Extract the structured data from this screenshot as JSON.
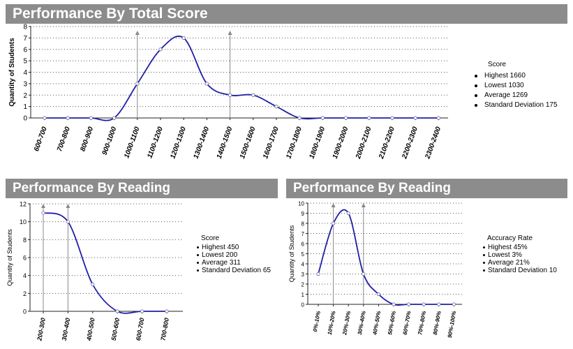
{
  "chart_data": [
    {
      "type": "line",
      "title": "Performance By Total Score",
      "ylabel": "Quantity of Students",
      "xlabel": "",
      "ylim": [
        0,
        8
      ],
      "yticks": [
        0,
        1,
        2,
        3,
        4,
        5,
        6,
        7,
        8
      ],
      "categories": [
        "600-700",
        "700-800",
        "800-900",
        "900-1000",
        "1000-1100",
        "1100-1200",
        "1200-1300",
        "1300-1400",
        "1400-1500",
        "1500-1600",
        "1600-1700",
        "1700-1800",
        "1800-1900",
        "1900-2000",
        "2000-2100",
        "2100-2200",
        "2200-2300",
        "2300-2400"
      ],
      "values": [
        0,
        0,
        0,
        0,
        3,
        6,
        7,
        3,
        2,
        2,
        1,
        0,
        0,
        0,
        0,
        0,
        0,
        0
      ],
      "markers": [
        4,
        8
      ],
      "legend": {
        "title": "Score",
        "items": [
          "Highest 1660",
          "Lowest 1030",
          "Average 1269",
          "Standard Deviation 175"
        ],
        "position": "right"
      },
      "grid": "horizontal-dotted",
      "color": "#1f1fa6"
    },
    {
      "type": "line",
      "title": "Performance By Reading",
      "ylabel": "Quantity of Students",
      "xlabel": "",
      "ylim": [
        0,
        12
      ],
      "yticks": [
        0,
        2,
        4,
        6,
        8,
        10,
        12
      ],
      "categories": [
        "200-300",
        "300-400",
        "400-500",
        "500-600",
        "600-700",
        "700-800"
      ],
      "values": [
        11,
        10,
        3,
        0,
        0,
        0
      ],
      "markers": [
        0,
        1
      ],
      "legend": {
        "title": "Score",
        "items": [
          "Highest 450",
          "Lowest 200",
          "Average 311",
          "Standard Deviation 65"
        ],
        "position": "right"
      },
      "grid": "horizontal-dotted",
      "color": "#1f1fa6"
    },
    {
      "type": "line",
      "title": "Performance By Reading",
      "ylabel": "Quantity of Students",
      "xlabel": "",
      "ylim": [
        0,
        10
      ],
      "yticks": [
        0,
        1,
        2,
        3,
        4,
        5,
        6,
        7,
        8,
        9,
        10
      ],
      "categories": [
        "0%-10%",
        "10%-20%",
        "20%-30%",
        "30%-40%",
        "40%-50%",
        "50%-60%",
        "60%-70%",
        "70%-80%",
        "80%-90%",
        "90%-100%"
      ],
      "values": [
        3,
        8,
        9,
        3,
        1,
        0,
        0,
        0,
        0,
        0
      ],
      "markers": [
        1,
        3
      ],
      "legend": {
        "title": "Accuracy Rate",
        "items": [
          "Highest 45%",
          "Lowest 3%",
          "Average 21%",
          "Standard Deviation 10"
        ],
        "position": "right"
      },
      "grid": "horizontal-dotted",
      "color": "#1f1fa6"
    }
  ]
}
